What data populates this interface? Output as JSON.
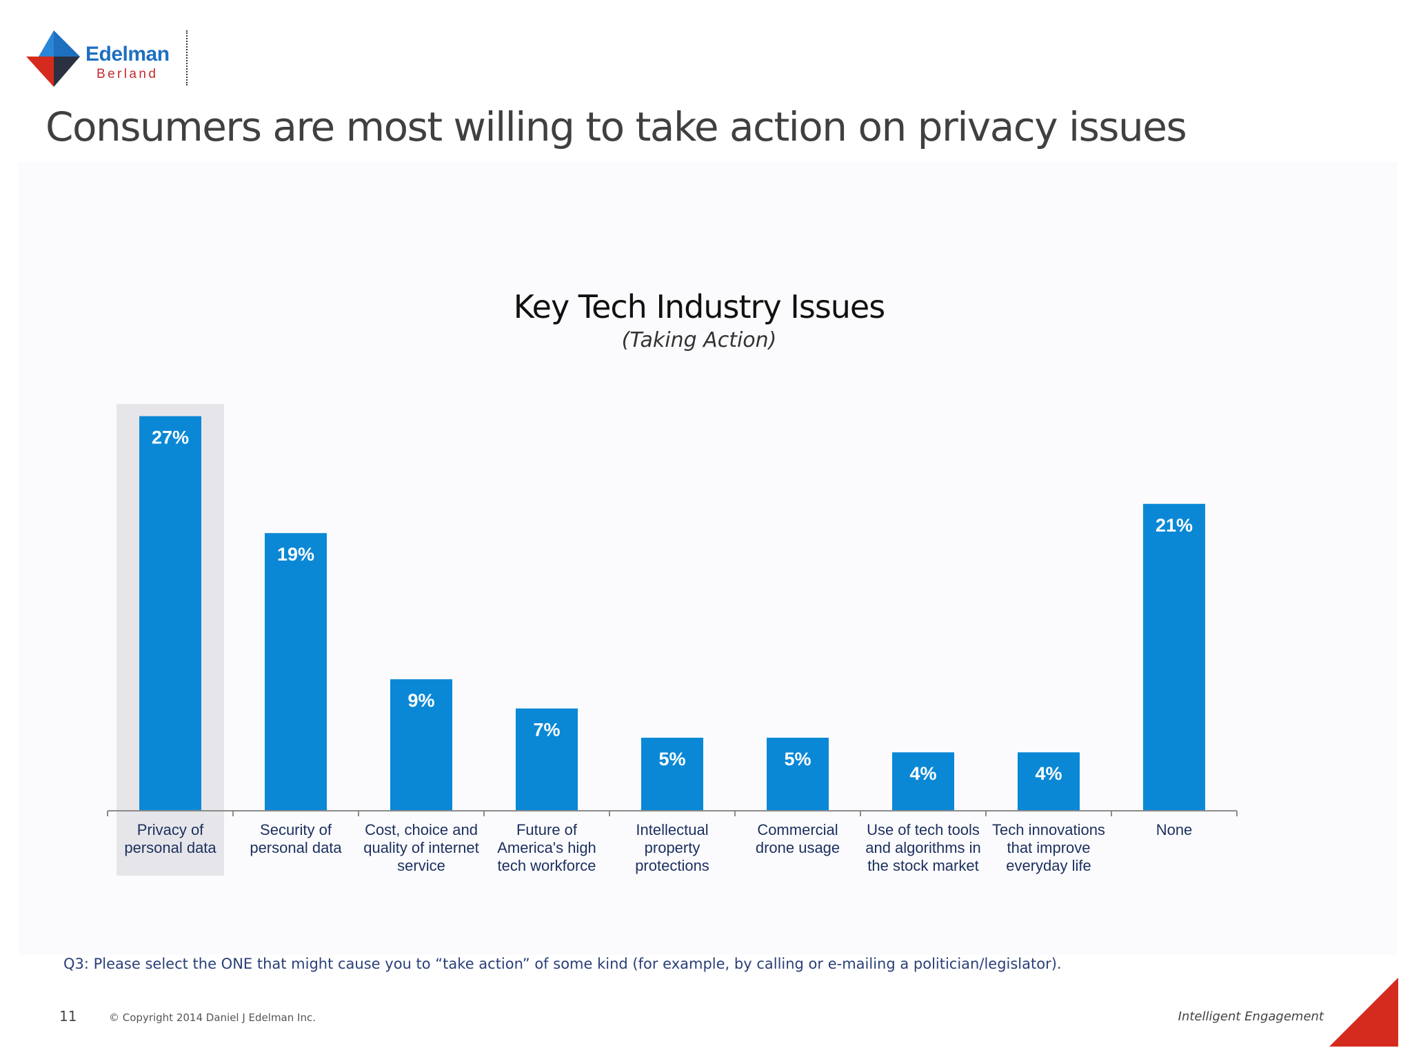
{
  "brand": {
    "name": "Edelman",
    "sub": "Berland",
    "colors": {
      "blue": "#1f6fbf",
      "red": "#d52b1e",
      "dark": "#333333"
    }
  },
  "headline": "Consumers are most willing to take action on privacy issues",
  "chart_data": {
    "type": "bar",
    "title": "Key Tech Industry Issues",
    "subtitle": "(Taking Action)",
    "categories": [
      [
        "Privacy of",
        "personal data"
      ],
      [
        "Security of",
        "personal data"
      ],
      [
        "Cost, choice and",
        "quality of internet",
        "service"
      ],
      [
        "Future of",
        "America's high",
        "tech workforce"
      ],
      [
        "Intellectual",
        "property",
        "protections"
      ],
      [
        "Commercial",
        "drone usage"
      ],
      [
        "Use of tech tools",
        "and algorithms in",
        "the stock market"
      ],
      [
        "Tech innovations",
        "that improve",
        "everyday life"
      ],
      [
        "None"
      ]
    ],
    "values": [
      27,
      19,
      9,
      7,
      5,
      5,
      4,
      4,
      21
    ],
    "value_labels": [
      "27%",
      "19%",
      "9%",
      "7%",
      "5%",
      "5%",
      "4%",
      "4%",
      "21%"
    ],
    "ylim": [
      0,
      30
    ],
    "highlight_index": 0,
    "grid": false,
    "bar_color": "#0a88d6",
    "highlight_color": "#e6e6ea"
  },
  "footer": {
    "question": "Q3: Please select the ONE that might cause you to “take action” of some kind (for example, by calling or e-mailing a politician/legislator).",
    "page_number": "11",
    "copyright": "© Copyright 2014 Daniel J Edelman Inc.",
    "tagline": "Intelligent Engagement"
  }
}
